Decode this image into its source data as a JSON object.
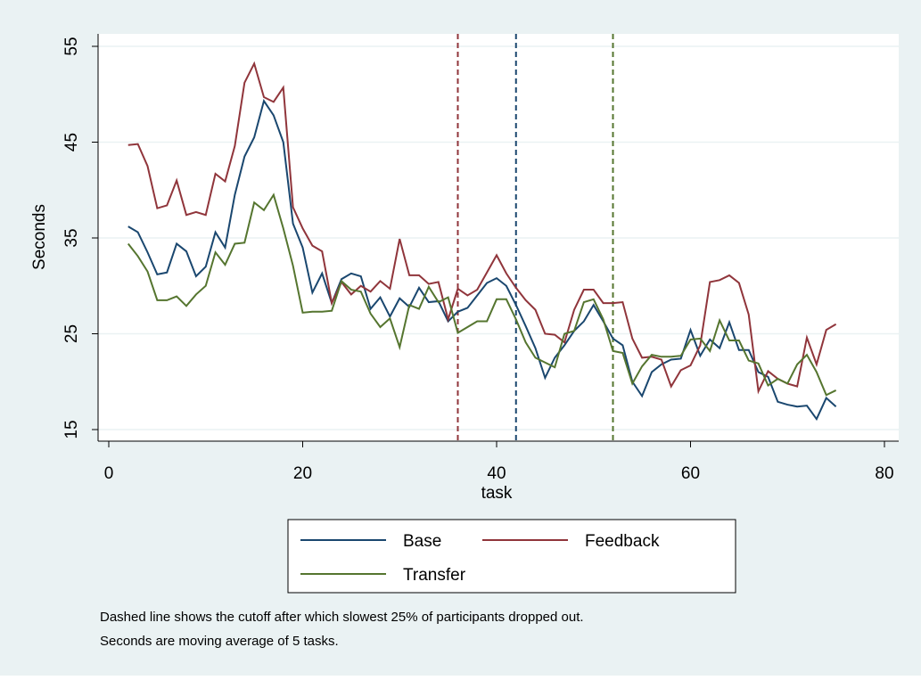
{
  "chart_data": {
    "type": "line",
    "xlabel": "task",
    "ylabel": "Seconds",
    "x": [
      2,
      3,
      4,
      5,
      6,
      7,
      8,
      9,
      10,
      11,
      12,
      13,
      14,
      15,
      16,
      17,
      18,
      19,
      20,
      21,
      22,
      23,
      24,
      25,
      26,
      27,
      28,
      29,
      30,
      31,
      32,
      33,
      34,
      35,
      36,
      37,
      38,
      39,
      40,
      41,
      42,
      43,
      44,
      45,
      46,
      47,
      48,
      49,
      50,
      51,
      52,
      53,
      54,
      55,
      56,
      57,
      58,
      59,
      60,
      61,
      62,
      63,
      64,
      65,
      66,
      67,
      68,
      69,
      70,
      71,
      72,
      73,
      74,
      75
    ],
    "series": [
      {
        "name": "Base",
        "color": "#1a476f",
        "values": [
          36.2,
          35.6,
          33.5,
          31.2,
          31.4,
          34.4,
          33.6,
          31.0,
          32.0,
          35.6,
          34.0,
          39.5,
          43.5,
          45.5,
          49.3,
          47.8,
          45.0,
          36.5,
          34.0,
          29.3,
          31.3,
          28.2,
          30.7,
          31.3,
          31.0,
          27.6,
          28.8,
          26.8,
          28.7,
          27.8,
          29.8,
          28.3,
          28.4,
          26.3,
          27.3,
          27.7,
          29.0,
          30.3,
          30.8,
          30.0,
          28.0,
          25.8,
          23.5,
          20.4,
          22.5,
          23.8,
          25.3,
          26.3,
          28.0,
          26.3,
          24.5,
          23.8,
          20.0,
          18.5,
          21.0,
          21.8,
          22.3,
          22.4,
          25.4,
          22.7,
          24.4,
          23.5,
          26.2,
          23.3,
          23.3,
          21.0,
          20.5,
          17.9,
          17.6,
          17.4,
          17.5,
          16.1,
          18.3,
          17.4
        ]
      },
      {
        "name": "Feedback",
        "color": "#90353b",
        "values": [
          44.7,
          44.8,
          42.5,
          38.1,
          38.4,
          41.0,
          37.4,
          37.7,
          37.4,
          41.7,
          40.9,
          44.6,
          51.2,
          53.2,
          49.7,
          49.2,
          50.7,
          38.2,
          36.0,
          34.2,
          33.6,
          28.2,
          30.4,
          29.1,
          30.0,
          29.4,
          30.5,
          29.7,
          34.9,
          31.1,
          31.1,
          30.2,
          30.4,
          26.5,
          29.7,
          29.0,
          29.6,
          31.4,
          33.2,
          31.3,
          29.8,
          28.5,
          27.5,
          25.0,
          24.9,
          24.1,
          27.5,
          29.6,
          29.6,
          28.2,
          28.2,
          28.3,
          24.5,
          22.5,
          22.6,
          22.3,
          19.5,
          21.2,
          21.7,
          23.8,
          30.4,
          30.6,
          31.1,
          30.3,
          27.0,
          19.0,
          21.1,
          20.3,
          19.8,
          19.5,
          24.6,
          21.8,
          25.4,
          26.0
        ]
      },
      {
        "name": "Transfer",
        "color": "#55752f",
        "values": [
          34.4,
          33.1,
          31.5,
          28.5,
          28.5,
          28.9,
          27.9,
          29.1,
          30.0,
          33.5,
          32.2,
          34.4,
          34.5,
          38.7,
          37.9,
          39.5,
          36.0,
          32.1,
          27.2,
          27.3,
          27.3,
          27.4,
          30.5,
          29.6,
          29.4,
          27.1,
          25.7,
          26.6,
          23.6,
          28.0,
          27.6,
          29.9,
          28.3,
          28.8,
          25.1,
          25.7,
          26.3,
          26.3,
          28.6,
          28.6,
          26.5,
          24.1,
          22.5,
          22.0,
          21.5,
          25.0,
          25.3,
          28.3,
          28.6,
          26.5,
          23.2,
          23.0,
          19.8,
          21.6,
          22.8,
          22.6,
          22.6,
          22.7,
          24.4,
          24.5,
          23.2,
          26.4,
          24.3,
          24.3,
          22.2,
          21.9,
          19.6,
          20.3,
          19.8,
          21.8,
          22.8,
          21.0,
          18.6,
          19.1
        ]
      }
    ],
    "vlines": [
      {
        "x": 36,
        "color": "#90353b"
      },
      {
        "x": 42,
        "color": "#1a476f"
      },
      {
        "x": 52,
        "color": "#55752f"
      }
    ],
    "xlim": [
      0,
      80
    ],
    "xticks": [
      0,
      20,
      40,
      60,
      80
    ],
    "ylim": [
      15,
      55
    ],
    "yticks": [
      15,
      25,
      35,
      45,
      55
    ],
    "grid": true,
    "notes": [
      "Dashed line shows the cutoff after which slowest 25% of participants dropped out.",
      "Seconds are moving average of 5 tasks."
    ]
  }
}
